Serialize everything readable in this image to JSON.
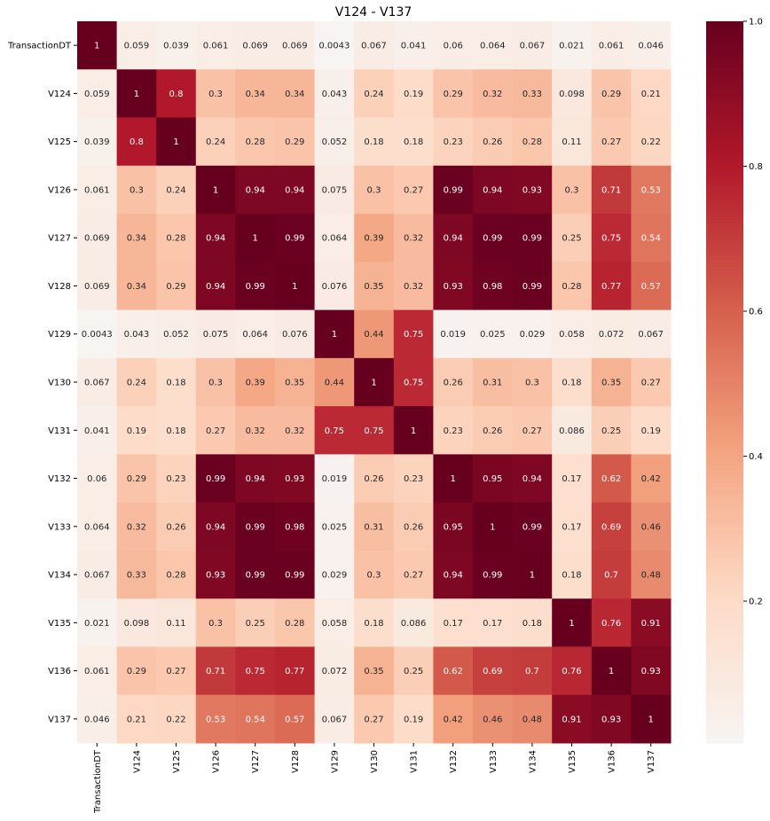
{
  "chart_data": {
    "type": "heatmap",
    "title": "V124 - V137",
    "xlabel": "",
    "ylabel": "",
    "colormap": "RdBu_r (lower half)",
    "vmin": 0.0043,
    "vmax": 1,
    "colorbar_ticks": [
      "0.2",
      "0.4",
      "0.6",
      "0.8",
      "1.0"
    ],
    "colorbar_tick_values": [
      0.2,
      0.4,
      0.6,
      0.8,
      1.0
    ],
    "row_labels": [
      "TransactionDT",
      "V124",
      "V125",
      "V126",
      "V127",
      "V128",
      "V129",
      "V130",
      "V131",
      "V132",
      "V133",
      "V134",
      "V135",
      "V136",
      "V137"
    ],
    "col_labels": [
      "TransactionDT",
      "V124",
      "V125",
      "V126",
      "V127",
      "V128",
      "V129",
      "V130",
      "V131",
      "V132",
      "V133",
      "V134",
      "V135",
      "V136",
      "V137"
    ],
    "matrix": [
      [
        1,
        0.059,
        0.039,
        0.061,
        0.069,
        0.069,
        0.0043,
        0.067,
        0.041,
        0.06,
        0.064,
        0.067,
        0.021,
        0.061,
        0.046
      ],
      [
        0.059,
        1,
        0.8,
        0.3,
        0.34,
        0.34,
        0.043,
        0.24,
        0.19,
        0.29,
        0.32,
        0.33,
        0.098,
        0.29,
        0.21
      ],
      [
        0.039,
        0.8,
        1,
        0.24,
        0.28,
        0.29,
        0.052,
        0.18,
        0.18,
        0.23,
        0.26,
        0.28,
        0.11,
        0.27,
        0.22
      ],
      [
        0.061,
        0.3,
        0.24,
        1,
        0.94,
        0.94,
        0.075,
        0.3,
        0.27,
        0.99,
        0.94,
        0.93,
        0.3,
        0.71,
        0.53
      ],
      [
        0.069,
        0.34,
        0.28,
        0.94,
        1,
        0.99,
        0.064,
        0.39,
        0.32,
        0.94,
        0.99,
        0.99,
        0.25,
        0.75,
        0.54
      ],
      [
        0.069,
        0.34,
        0.29,
        0.94,
        0.99,
        1,
        0.076,
        0.35,
        0.32,
        0.93,
        0.98,
        0.99,
        0.28,
        0.77,
        0.57
      ],
      [
        0.0043,
        0.043,
        0.052,
        0.075,
        0.064,
        0.076,
        1,
        0.44,
        0.75,
        0.019,
        0.025,
        0.029,
        0.058,
        0.072,
        0.067
      ],
      [
        0.067,
        0.24,
        0.18,
        0.3,
        0.39,
        0.35,
        0.44,
        1,
        0.75,
        0.26,
        0.31,
        0.3,
        0.18,
        0.35,
        0.27
      ],
      [
        0.041,
        0.19,
        0.18,
        0.27,
        0.32,
        0.32,
        0.75,
        0.75,
        1,
        0.23,
        0.26,
        0.27,
        0.086,
        0.25,
        0.19
      ],
      [
        0.06,
        0.29,
        0.23,
        0.99,
        0.94,
        0.93,
        0.019,
        0.26,
        0.23,
        1,
        0.95,
        0.94,
        0.17,
        0.62,
        0.42
      ],
      [
        0.064,
        0.32,
        0.26,
        0.94,
        0.99,
        0.98,
        0.025,
        0.31,
        0.26,
        0.95,
        1,
        0.99,
        0.17,
        0.69,
        0.46
      ],
      [
        0.067,
        0.33,
        0.28,
        0.93,
        0.99,
        0.99,
        0.029,
        0.3,
        0.27,
        0.94,
        0.99,
        1,
        0.18,
        0.7,
        0.48
      ],
      [
        0.021,
        0.098,
        0.11,
        0.3,
        0.25,
        0.28,
        0.058,
        0.18,
        0.086,
        0.17,
        0.17,
        0.18,
        1,
        0.76,
        0.91
      ],
      [
        0.061,
        0.29,
        0.27,
        0.71,
        0.75,
        0.77,
        0.072,
        0.35,
        0.25,
        0.62,
        0.69,
        0.7,
        0.76,
        1,
        0.93
      ],
      [
        0.046,
        0.21,
        0.22,
        0.53,
        0.54,
        0.57,
        0.067,
        0.27,
        0.19,
        0.42,
        0.46,
        0.48,
        0.91,
        0.93,
        1
      ]
    ],
    "cell_labels": [
      [
        "1",
        "0.059",
        "0.039",
        "0.061",
        "0.069",
        "0.069",
        "0.0043",
        "0.067",
        "0.041",
        "0.06",
        "0.064",
        "0.067",
        "0.021",
        "0.061",
        "0.046"
      ],
      [
        "0.059",
        "1",
        "0.8",
        "0.3",
        "0.34",
        "0.34",
        "0.043",
        "0.24",
        "0.19",
        "0.29",
        "0.32",
        "0.33",
        "0.098",
        "0.29",
        "0.21"
      ],
      [
        "0.039",
        "0.8",
        "1",
        "0.24",
        "0.28",
        "0.29",
        "0.052",
        "0.18",
        "0.18",
        "0.23",
        "0.26",
        "0.28",
        "0.11",
        "0.27",
        "0.22"
      ],
      [
        "0.061",
        "0.3",
        "0.24",
        "1",
        "0.94",
        "0.94",
        "0.075",
        "0.3",
        "0.27",
        "0.99",
        "0.94",
        "0.93",
        "0.3",
        "0.71",
        "0.53"
      ],
      [
        "0.069",
        "0.34",
        "0.28",
        "0.94",
        "1",
        "0.99",
        "0.064",
        "0.39",
        "0.32",
        "0.94",
        "0.99",
        "0.99",
        "0.25",
        "0.75",
        "0.54"
      ],
      [
        "0.069",
        "0.34",
        "0.29",
        "0.94",
        "0.99",
        "1",
        "0.076",
        "0.35",
        "0.32",
        "0.93",
        "0.98",
        "0.99",
        "0.28",
        "0.77",
        "0.57"
      ],
      [
        "0.0043",
        "0.043",
        "0.052",
        "0.075",
        "0.064",
        "0.076",
        "1",
        "0.44",
        "0.75",
        "0.019",
        "0.025",
        "0.029",
        "0.058",
        "0.072",
        "0.067"
      ],
      [
        "0.067",
        "0.24",
        "0.18",
        "0.3",
        "0.39",
        "0.35",
        "0.44",
        "1",
        "0.75",
        "0.26",
        "0.31",
        "0.3",
        "0.18",
        "0.35",
        "0.27"
      ],
      [
        "0.041",
        "0.19",
        "0.18",
        "0.27",
        "0.32",
        "0.32",
        "0.75",
        "0.75",
        "1",
        "0.23",
        "0.26",
        "0.27",
        "0.086",
        "0.25",
        "0.19"
      ],
      [
        "0.06",
        "0.29",
        "0.23",
        "0.99",
        "0.94",
        "0.93",
        "0.019",
        "0.26",
        "0.23",
        "1",
        "0.95",
        "0.94",
        "0.17",
        "0.62",
        "0.42"
      ],
      [
        "0.064",
        "0.32",
        "0.26",
        "0.94",
        "0.99",
        "0.98",
        "0.025",
        "0.31",
        "0.26",
        "0.95",
        "1",
        "0.99",
        "0.17",
        "0.69",
        "0.46"
      ],
      [
        "0.067",
        "0.33",
        "0.28",
        "0.93",
        "0.99",
        "0.99",
        "0.029",
        "0.3",
        "0.27",
        "0.94",
        "0.99",
        "1",
        "0.18",
        "0.7",
        "0.48"
      ],
      [
        "0.021",
        "0.098",
        "0.11",
        "0.3",
        "0.25",
        "0.28",
        "0.058",
        "0.18",
        "0.086",
        "0.17",
        "0.17",
        "0.18",
        "1",
        "0.76",
        "0.91"
      ],
      [
        "0.061",
        "0.29",
        "0.27",
        "0.71",
        "0.75",
        "0.77",
        "0.072",
        "0.35",
        "0.25",
        "0.62",
        "0.69",
        "0.7",
        "0.76",
        "1",
        "0.93"
      ],
      [
        "0.046",
        "0.21",
        "0.22",
        "0.53",
        "0.54",
        "0.57",
        "0.067",
        "0.27",
        "0.19",
        "0.42",
        "0.46",
        "0.48",
        "0.91",
        "0.93",
        "1"
      ]
    ],
    "colors": {
      "stops": [
        "#f7f4f2",
        "#fddbc7",
        "#f4a582",
        "#d6604d",
        "#b2182b",
        "#67001f"
      ],
      "light_text": "#ffffff",
      "dark_text": "#262626"
    }
  }
}
